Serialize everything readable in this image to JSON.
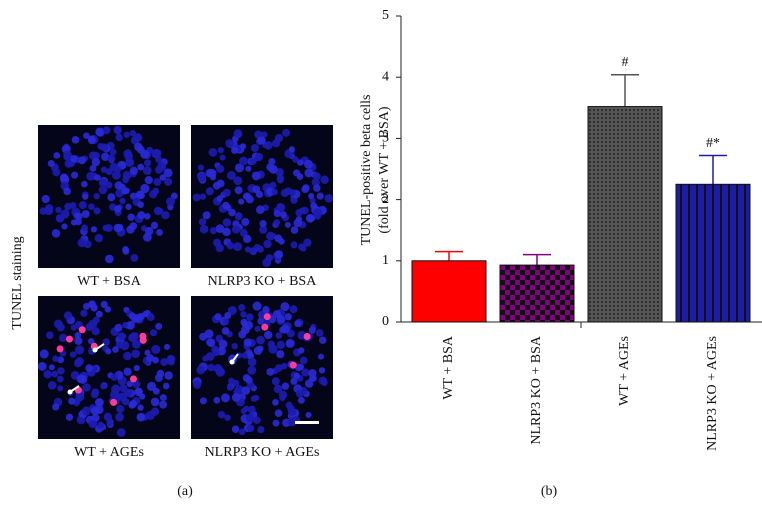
{
  "panel_a": {
    "label": "(a)",
    "row_label": "TUNEL staining",
    "image_captions": [
      "WT + BSA",
      "NLRP3 KO + BSA",
      "WT + AGEs",
      "NLRP3 KO + AGEs"
    ]
  },
  "chart_data": {
    "type": "bar",
    "panel_label": "(b)",
    "ylabel": [
      "TUNEL-positive beta cells",
      "(fold over WT + BSA)"
    ],
    "categories": [
      "WT + BSA",
      "NLRP3 KO + BSA",
      "WT + AGEs",
      "NLRP3 KO + AGEs"
    ],
    "values": [
      1.0,
      0.93,
      3.52,
      2.25
    ],
    "errors": [
      0.15,
      0.17,
      0.52,
      0.47
    ],
    "value_annotations": [
      null,
      null,
      "#",
      "#*"
    ],
    "colors": [
      "#ff0000",
      "#800080",
      "#555555",
      "#1c1ca8"
    ],
    "patterns": [
      "solid",
      "checker",
      "dots",
      "stripes"
    ],
    "ylim": [
      0,
      5
    ],
    "yticks": [
      0,
      1,
      2,
      3,
      4,
      5
    ]
  }
}
